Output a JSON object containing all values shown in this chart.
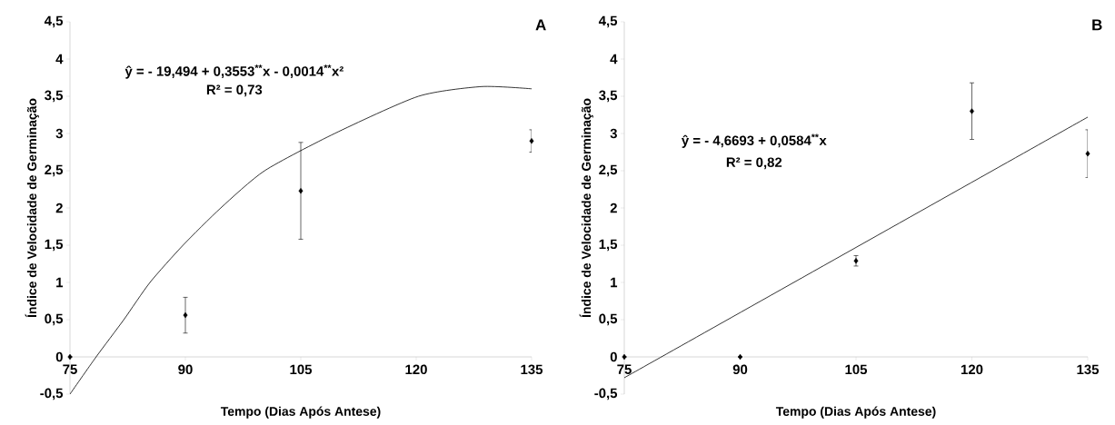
{
  "chart_data": [
    {
      "type": "scatter",
      "title": "A",
      "xlabel": "Tempo (Dias Após Antese)",
      "ylabel": "Índice de Velocidade de Germinação",
      "annotations": [
        "ŷ = - 19,494 + 0,3553$^{**}$x - 0,0014$^{**}$x²",
        "R² = 0,73"
      ],
      "xlim": [
        75,
        135
      ],
      "xticks": [
        75,
        90,
        105,
        120,
        135
      ],
      "ylim": [
        -0.5,
        4.5
      ],
      "yticks": [
        {
          "value": -0.5,
          "label": "-0,5"
        },
        0,
        {
          "value": 0.5,
          "label": "0,5"
        },
        1,
        {
          "value": 1.5,
          "label": "1,5"
        },
        2,
        {
          "value": 2.5,
          "label": "2,5"
        },
        3,
        {
          "value": 3.5,
          "label": "3,5"
        },
        4,
        {
          "value": 4.5,
          "label": "4,5"
        }
      ],
      "marker": "diamond",
      "series": [
        {
          "type": "scatter",
          "color": "#000000",
          "x": [
            75,
            90,
            105,
            120,
            135
          ],
          "values": [
            0,
            0.56,
            2.23,
            null,
            2.9
          ],
          "errors": [
            null,
            0.24,
            0.65,
            null,
            0.15
          ]
        },
        {
          "type": "line",
          "color": "#000000",
          "marker": "none",
          "line_style": "solid",
          "x": [
            75,
            78.4,
            82,
            85.4,
            89.7,
            94.6,
            100.3,
            109.4,
            120.3,
            128.5,
            135
          ],
          "values": [
            -0.5,
            0,
            0.5,
            1,
            1.5,
            2,
            2.5,
            3,
            3.5,
            3.63,
            3.6
          ]
        }
      ]
    },
    {
      "type": "scatter",
      "title": "B",
      "xlabel": "Tempo (Dias Após Antese)",
      "ylabel": "Índice de Velocidade de Germinação",
      "annotations": [
        "ŷ = - 4,6693 + 0,0584$^{**}$x",
        "R² = 0,82"
      ],
      "xlim": [
        75,
        135
      ],
      "xticks": [
        75,
        90,
        105,
        120,
        135
      ],
      "ylim": [
        -0.5,
        4.5
      ],
      "yticks": [
        {
          "value": -0.5,
          "label": "-0,5"
        },
        0,
        {
          "value": 0.5,
          "label": "0,5"
        },
        1,
        {
          "value": 1.5,
          "label": "1,5"
        },
        2,
        {
          "value": 2.5,
          "label": "2,5"
        },
        3,
        {
          "value": 3.5,
          "label": "3,5"
        },
        4,
        {
          "value": 4.5,
          "label": "4,5"
        }
      ],
      "marker": "diamond",
      "series": [
        {
          "type": "scatter",
          "color": "#000000",
          "x": [
            75,
            90,
            105,
            120,
            135
          ],
          "values": [
            0,
            0,
            1.29,
            3.3,
            2.73
          ],
          "errors": [
            null,
            null,
            0.07,
            0.38,
            0.32
          ]
        },
        {
          "type": "line",
          "color": "#000000",
          "marker": "none",
          "line_style": "solid",
          "x": [
            75,
            135
          ],
          "values": [
            -0.28,
            3.22
          ]
        }
      ]
    }
  ]
}
